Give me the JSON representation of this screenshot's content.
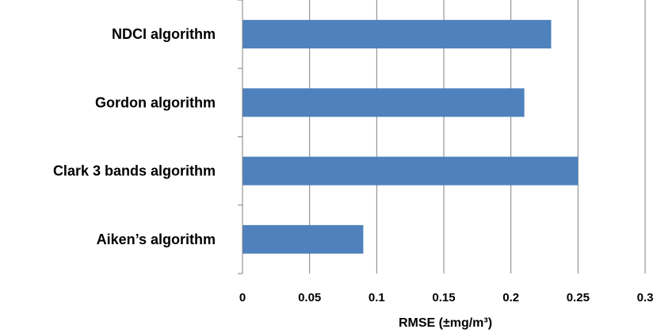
{
  "chart_data": {
    "type": "bar",
    "orientation": "horizontal",
    "categories": [
      "NDCI algorithm",
      "Gordon algorithm",
      "Clark 3 bands algorithm",
      "Aiken’s algorithm"
    ],
    "values": [
      0.23,
      0.21,
      0.25,
      0.09
    ],
    "title": "",
    "xlabel": "RMSE  (±mg/m³)",
    "ylabel": "",
    "xlim": [
      0,
      0.3
    ],
    "xticks": [
      "0",
      "0.05",
      "0.1",
      "0.15",
      "0.2",
      "0.25",
      "0.3"
    ],
    "grid": "vertical",
    "legend": "none",
    "bar_color": "#4f81bd"
  }
}
